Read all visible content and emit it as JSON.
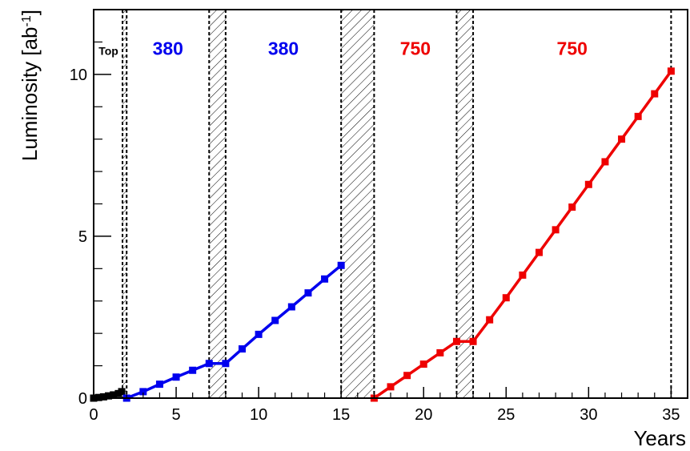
{
  "chart_data": {
    "type": "line",
    "xlabel": "Years",
    "ylabel": "Luminosity [ab",
    "ylabel_sup": "-1",
    "ylabel_close": "]",
    "xlim": [
      0,
      36
    ],
    "ylim": [
      0,
      12
    ],
    "x_ticks": [
      0,
      5,
      10,
      15,
      20,
      25,
      30,
      35
    ],
    "y_ticks": [
      0,
      5,
      10
    ],
    "grid": false,
    "legend": "none",
    "colors": {
      "top": "#000000",
      "s380": "#0000ee",
      "s750": "#ee0000"
    },
    "series": [
      {
        "color_key": "top",
        "x": [
          0,
          0.3,
          0.6,
          0.9,
          1.2,
          1.5,
          1.7
        ],
        "y": [
          0.0,
          0.02,
          0.04,
          0.07,
          0.1,
          0.14,
          0.2
        ]
      },
      {
        "color_key": "s380",
        "x": [
          2,
          3,
          4,
          5,
          6,
          7,
          8,
          9,
          10,
          11,
          12,
          13,
          14,
          15
        ],
        "y": [
          0.0,
          0.2,
          0.43,
          0.65,
          0.86,
          1.07,
          1.07,
          1.52,
          1.97,
          2.4,
          2.82,
          3.25,
          3.68,
          4.1
        ]
      },
      {
        "color_key": "s750",
        "x": [
          17,
          18,
          19,
          20,
          21,
          22,
          23,
          24,
          25,
          26,
          27,
          28,
          29,
          30,
          31,
          32,
          33,
          34,
          35
        ],
        "y": [
          0.0,
          0.35,
          0.7,
          1.05,
          1.4,
          1.75,
          1.75,
          2.42,
          3.1,
          3.8,
          4.5,
          5.2,
          5.9,
          6.6,
          7.3,
          8.0,
          8.7,
          9.4,
          10.1
        ]
      }
    ],
    "shutdown_bands": [
      [
        1.75,
        2.0
      ],
      [
        7.0,
        8.0
      ],
      [
        15.0,
        17.0
      ],
      [
        22.0,
        23.0
      ]
    ],
    "end_line_x": 35,
    "annotations": [
      {
        "text": "Top",
        "x": 0.9,
        "y": 10.6,
        "color_key": "top",
        "small": true
      },
      {
        "text": "380",
        "x": 4.5,
        "y": 10.6,
        "color_key": "s380"
      },
      {
        "text": "380",
        "x": 11.5,
        "y": 10.6,
        "color_key": "s380"
      },
      {
        "text": "750",
        "x": 19.5,
        "y": 10.6,
        "color_key": "s750"
      },
      {
        "text": "750",
        "x": 29.0,
        "y": 10.6,
        "color_key": "s750"
      }
    ]
  }
}
